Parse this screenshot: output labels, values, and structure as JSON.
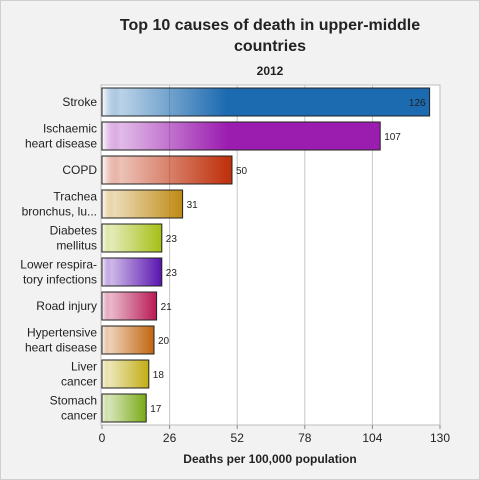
{
  "chart_data": {
    "type": "bar",
    "orientation": "horizontal",
    "title": "Top 10 causes of death in upper-middle countries",
    "subtitle": "2012",
    "xlabel": "Deaths per 100,000 population",
    "xlim": [
      0,
      130
    ],
    "xticks": [
      0,
      26,
      52,
      78,
      104,
      130
    ],
    "grid": true,
    "categories": [
      [
        "Stroke"
      ],
      [
        "Ischaemic",
        "heart disease"
      ],
      [
        "COPD"
      ],
      [
        "Trachea",
        "bronchus, lu..."
      ],
      [
        "Diabetes",
        "mellitus"
      ],
      [
        "Lower respira-",
        "tory infections"
      ],
      [
        "Road injury"
      ],
      [
        "Hypertensive",
        "heart disease"
      ],
      [
        "Liver",
        "cancer"
      ],
      [
        "Stomach",
        "cancer"
      ]
    ],
    "values": [
      126,
      107,
      50,
      31,
      23,
      23,
      21,
      20,
      18,
      17
    ],
    "colors": [
      "#1c6ab0",
      "#9b1db0",
      "#c0330f",
      "#bf8a14",
      "#a6bf14",
      "#5a14b0",
      "#b81a54",
      "#c2650f",
      "#c2ad14",
      "#7aaa18"
    ]
  }
}
